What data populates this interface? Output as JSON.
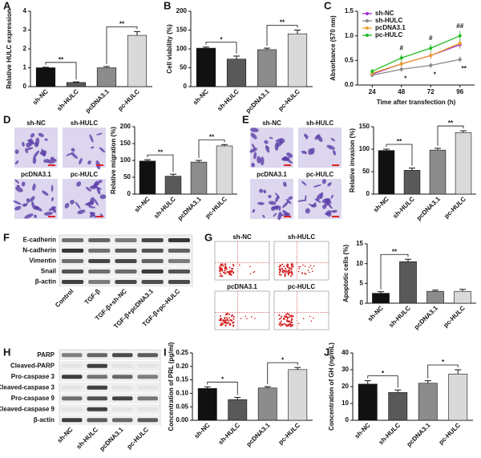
{
  "panel_labels": [
    "A",
    "B",
    "C",
    "D",
    "E",
    "F",
    "G",
    "H",
    "I",
    "J"
  ],
  "image_labels": {
    "D": [
      "sh-NC",
      "sh-HULC",
      "pcDNA3.1",
      "pc-HULC"
    ],
    "E": [
      "sh-NC",
      "sh-HULC",
      "pcDNA3.1",
      "pc-HULC"
    ],
    "G": [
      "sh-NC",
      "sh-HULC",
      "pcDNA3.1",
      "pc-HULC"
    ]
  },
  "blots": [
    {
      "rows": [
        "E-cadherin",
        "N-cadherin",
        "Vimentin",
        "Snail",
        "β-actin"
      ],
      "columns": [
        "Control",
        "TGF-β",
        "TGF-β+sh-NC",
        "TGF-β+pcDNA3.1",
        "TGF-β+pc-HULC"
      ]
    },
    {
      "rows": [
        "PARP",
        "Cleaved-PARP",
        "Pro-caspase 3",
        "Cleaved-caspase 3",
        "Pro-caspase 9",
        "Cleaved-caspase 9",
        "β-actin"
      ],
      "columns": [
        "sh-NC",
        "sh-HULC",
        "pcDNA3.1",
        "pc-HULC"
      ]
    }
  ],
  "chart_data": [
    {
      "type": "bar",
      "ylabel": "Relative HULC expression",
      "categories": [
        "sh-NC",
        "sh-HULC",
        "pcDNA3.1",
        "pc-HULC"
      ],
      "values": [
        1.0,
        0.22,
        1.0,
        2.72
      ],
      "errors": [
        0.03,
        0.03,
        0.07,
        0.2
      ],
      "colors": [
        "#111111",
        "#595959",
        "#8c8c8c",
        "#d9d9d9"
      ],
      "ylim": [
        0,
        4
      ],
      "yticks": [
        0,
        1,
        2,
        3,
        4
      ],
      "brackets": [
        {
          "from": "sh-NC",
          "to": "sh-HULC",
          "text": "**"
        },
        {
          "from": "pcDNA3.1",
          "to": "pc-HULC",
          "text": "**"
        }
      ]
    },
    {
      "type": "bar",
      "ylabel": "Cell viability (%)",
      "categories": [
        "sh-NC",
        "sh-HULC",
        "pcDNA3.1",
        "pc-HULC"
      ],
      "values": [
        102,
        73,
        98,
        140
      ],
      "errors": [
        3,
        8,
        4,
        10
      ],
      "colors": [
        "#111111",
        "#595959",
        "#8c8c8c",
        "#d9d9d9"
      ],
      "ylim": [
        0,
        200
      ],
      "yticks": [
        0,
        50,
        100,
        150,
        200
      ],
      "brackets": [
        {
          "from": "sh-NC",
          "to": "sh-HULC",
          "text": "*"
        },
        {
          "from": "pcDNA3.1",
          "to": "pc-HULC",
          "text": "**"
        }
      ]
    },
    {
      "type": "line",
      "ylabel": "Absorbance (570 nm)",
      "xlabel": "Time after transfection (h)",
      "x": [
        24,
        48,
        72,
        96
      ],
      "xlim": [
        12,
        108
      ],
      "xticks": [
        24,
        48,
        72,
        96
      ],
      "ylim": [
        0,
        1.5
      ],
      "yticks": [
        {
          "value": 0,
          "label": "0.0"
        },
        0.5,
        {
          "value": 1,
          "label": "1.0"
        },
        1.5
      ],
      "legend": "upper left",
      "series": [
        {
          "name": "sh-NC",
          "color": "#9b30c8",
          "values": [
            0.22,
            0.43,
            0.6,
            0.82
          ],
          "errors": [
            0.05,
            0.06,
            0.07,
            0.08
          ]
        },
        {
          "name": "sh-HULC",
          "color": "#888888",
          "values": [
            0.2,
            0.32,
            0.4,
            0.52
          ],
          "errors": [
            0.04,
            0.05,
            0.06,
            0.06
          ]
        },
        {
          "name": "pcDNA3.1",
          "color": "#f0a030",
          "values": [
            0.24,
            0.43,
            0.6,
            0.85
          ],
          "errors": [
            0.05,
            0.06,
            0.07,
            0.08
          ]
        },
        {
          "name": "pc-HULC",
          "color": "#22bb22",
          "values": [
            0.28,
            0.55,
            0.75,
            1.0
          ],
          "errors": [
            0.05,
            0.07,
            0.08,
            0.1
          ]
        }
      ],
      "annotations": [
        {
          "x": 48,
          "text": "#",
          "position": "above"
        },
        {
          "x": 48,
          "text": "*",
          "position": "below"
        },
        {
          "x": 72,
          "text": "#",
          "position": "above"
        },
        {
          "x": 72,
          "text": "*",
          "position": "below"
        },
        {
          "x": 96,
          "text": "##",
          "position": "above"
        },
        {
          "x": 96,
          "text": "**",
          "position": "below"
        }
      ]
    },
    {
      "type": "bar",
      "ylabel": "Relative migration (%)",
      "categories": [
        "sh-NC",
        "sh-HULC",
        "pcDNA3.1",
        "pc-HULC"
      ],
      "values": [
        98,
        53,
        95,
        143
      ],
      "errors": [
        4,
        6,
        5,
        4
      ],
      "colors": [
        "#111111",
        "#595959",
        "#8c8c8c",
        "#d9d9d9"
      ],
      "ylim": [
        0,
        200
      ],
      "yticks": [
        0,
        50,
        100,
        150,
        200
      ],
      "brackets": [
        {
          "from": "sh-NC",
          "to": "sh-HULC",
          "text": "**"
        },
        {
          "from": "pcDNA3.1",
          "to": "pc-HULC",
          "text": "**"
        }
      ]
    },
    {
      "type": "bar",
      "ylabel": "Relative invasion (%)",
      "categories": [
        "sh-NC",
        "sh-HULC",
        "pcDNA3.1",
        "pc-HULC"
      ],
      "values": [
        97,
        53,
        98,
        137
      ],
      "errors": [
        3,
        5,
        4,
        4
      ],
      "colors": [
        "#111111",
        "#595959",
        "#8c8c8c",
        "#d9d9d9"
      ],
      "ylim": [
        0,
        150
      ],
      "yticks": [
        0,
        50,
        100,
        150
      ],
      "brackets": [
        {
          "from": "sh-NC",
          "to": "sh-HULC",
          "text": "**"
        },
        {
          "from": "pcDNA3.1",
          "to": "pc-HULC",
          "text": "**"
        }
      ]
    },
    {
      "type": "bar",
      "ylabel": "Apoptotic cells (%)",
      "categories": [
        "sh-NC",
        "sh-HULC",
        "pcDNA3.1",
        "pc-HULC"
      ],
      "values": [
        2.5,
        10.5,
        3.0,
        3.0
      ],
      "errors": [
        0.4,
        0.6,
        0.3,
        0.5
      ],
      "colors": [
        "#111111",
        "#595959",
        "#8c8c8c",
        "#d9d9d9"
      ],
      "ylim": [
        0,
        15
      ],
      "yticks": [
        0,
        5,
        10,
        15
      ],
      "brackets": [
        {
          "from": "sh-NC",
          "to": "sh-HULC",
          "text": "**"
        }
      ]
    },
    {
      "type": "bar",
      "ylabel": "Concentration of PRL (pg/ml)",
      "categories": [
        "sh-NC",
        "sh-HULC",
        "pcDNA3.1",
        "pc-HULC"
      ],
      "values": [
        0.118,
        0.077,
        0.12,
        0.188
      ],
      "errors": [
        0.006,
        0.008,
        0.005,
        0.008
      ],
      "colors": [
        "#111111",
        "#595959",
        "#8c8c8c",
        "#d9d9d9"
      ],
      "ylim": [
        0,
        0.25
      ],
      "yticks": [
        {
          "value": 0,
          "label": "0.00"
        },
        0.05,
        {
          "value": 0.1,
          "label": "0.10"
        },
        0.15,
        {
          "value": 0.2,
          "label": "0.20"
        },
        0.25
      ],
      "brackets": [
        {
          "from": "sh-NC",
          "to": "sh-HULC",
          "text": "*"
        },
        {
          "from": "pcDNA3.1",
          "to": "pc-HULC",
          "text": "*"
        }
      ]
    },
    {
      "type": "bar",
      "ylabel": "Concentration of GH (ng/mL)",
      "categories": [
        "sh-NC",
        "sh-HULC",
        "pcDNA3.1",
        "pc-HULC"
      ],
      "values": [
        21.5,
        16.5,
        22,
        27.5
      ],
      "errors": [
        2,
        1.5,
        1.5,
        2.5
      ],
      "colors": [
        "#111111",
        "#595959",
        "#8c8c8c",
        "#d9d9d9"
      ],
      "ylim": [
        0,
        40
      ],
      "yticks": [
        0,
        10,
        20,
        30,
        40
      ],
      "brackets": [
        {
          "from": "sh-NC",
          "to": "sh-HULC",
          "text": "*"
        },
        {
          "from": "pcDNA3.1",
          "to": "pc-HULC",
          "text": "*"
        }
      ]
    }
  ]
}
